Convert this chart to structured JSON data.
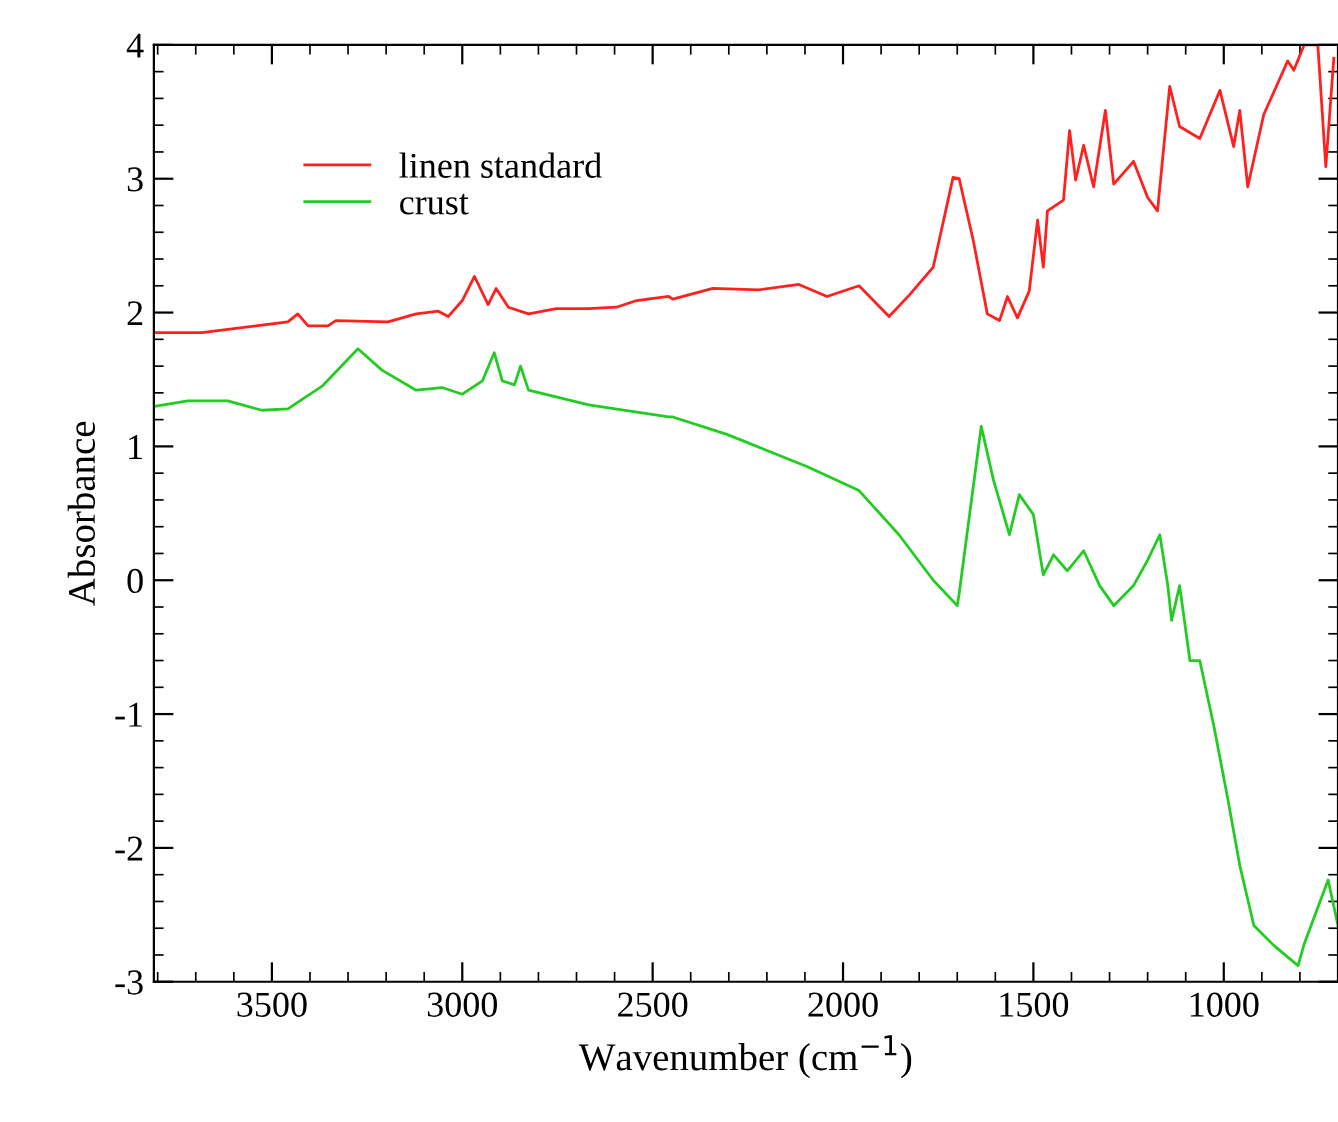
{
  "chart_data": {
    "type": "line",
    "xlabel": "Wavenumber (cm$^{−1}$)",
    "ylabel": "Absorbance",
    "xlim": [
      3810,
      700
    ],
    "ylim": [
      -3,
      4
    ],
    "xticks": [
      3500,
      3000,
      2500,
      2000,
      1500,
      1000
    ],
    "yticks": [
      -3,
      -2,
      -1,
      0,
      1,
      2,
      3,
      4
    ],
    "grid": false,
    "legend": "top left",
    "series": [
      {
        "name": "linen standard",
        "color": "#ff2020",
        "x": [
          3805,
          3684,
          3542,
          3458,
          3432,
          3405,
          3353,
          3332,
          3195,
          3121,
          3063,
          3037,
          3000,
          2968,
          2932,
          2911,
          2879,
          2826,
          2753,
          2668,
          2595,
          2542,
          2458,
          2447,
          2342,
          2221,
          2116,
          2042,
          1958,
          1879,
          1826,
          1763,
          1711,
          1695,
          1658,
          1621,
          1589,
          1568,
          1542,
          1511,
          1489,
          1474,
          1463,
          1421,
          1405,
          1389,
          1368,
          1342,
          1311,
          1289,
          1237,
          1200,
          1174,
          1142,
          1116,
          1063,
          1010,
          974,
          958,
          937,
          895,
          832,
          816,
          789,
          753,
          732,
          711
        ],
        "values": [
          1.85,
          1.85,
          1.9,
          1.93,
          1.99,
          1.9,
          1.9,
          1.94,
          1.93,
          1.99,
          2.01,
          1.97,
          2.09,
          2.27,
          2.06,
          2.18,
          2.04,
          1.99,
          2.03,
          2.03,
          2.04,
          2.09,
          2.12,
          2.1,
          2.18,
          2.17,
          2.21,
          2.12,
          2.2,
          1.97,
          2.13,
          2.34,
          3.01,
          3.0,
          2.54,
          1.99,
          1.94,
          2.12,
          1.96,
          2.16,
          2.69,
          2.34,
          2.76,
          2.84,
          3.36,
          2.99,
          3.25,
          2.94,
          3.51,
          2.96,
          3.13,
          2.86,
          2.76,
          3.69,
          3.39,
          3.3,
          3.66,
          3.24,
          3.51,
          2.94,
          3.48,
          3.88,
          3.81,
          4.0,
          4.0,
          3.09,
          3.9
        ]
      },
      {
        "name": "crust",
        "color": "#22cc22",
        "x": [
          3805,
          3721,
          3616,
          3526,
          3458,
          3368,
          3274,
          3211,
          3121,
          3053,
          3000,
          2947,
          2916,
          2895,
          2863,
          2847,
          2826,
          2668,
          2458,
          2447,
          2305,
          2095,
          1958,
          1853,
          1763,
          1700,
          1695,
          1637,
          1605,
          1563,
          1537,
          1500,
          1474,
          1447,
          1411,
          1368,
          1326,
          1289,
          1237,
          1200,
          1168,
          1147,
          1137,
          1116,
          1089,
          1063,
          1026,
          989,
          958,
          921,
          868,
          805,
          789,
          726,
          700
        ],
        "values": [
          1.3,
          1.34,
          1.34,
          1.27,
          1.28,
          1.45,
          1.73,
          1.57,
          1.42,
          1.44,
          1.39,
          1.49,
          1.7,
          1.49,
          1.46,
          1.6,
          1.42,
          1.31,
          1.22,
          1.22,
          1.09,
          0.85,
          0.67,
          0.34,
          0.0,
          -0.19,
          -0.1,
          1.15,
          0.75,
          0.34,
          0.64,
          0.49,
          0.04,
          0.19,
          0.07,
          0.22,
          -0.04,
          -0.19,
          -0.04,
          0.15,
          0.34,
          -0.04,
          -0.3,
          -0.04,
          -0.6,
          -0.6,
          -1.09,
          -1.64,
          -2.13,
          -2.58,
          -2.73,
          -2.88,
          -2.72,
          -2.24,
          -2.58
        ]
      }
    ]
  }
}
